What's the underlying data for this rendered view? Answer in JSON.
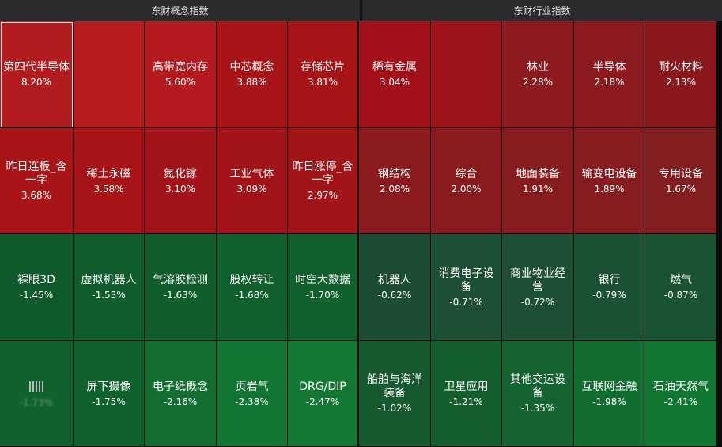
{
  "headers": {
    "left": "东财概念指数",
    "right": "东财行业指数"
  },
  "tiles": [
    {
      "name": "第四代半导体",
      "pct": "8.20%",
      "color": "#b31c1f"
    },
    {
      "name": "",
      "pct": "",
      "color": "#b71c1f"
    },
    {
      "name": "高带宽内存",
      "pct": "5.60%",
      "color": "#b51b1e"
    },
    {
      "name": "中芯概念",
      "pct": "3.88%",
      "color": "#a81418"
    },
    {
      "name": "存储芯片",
      "pct": "3.81%",
      "color": "#a61418"
    },
    {
      "name": "稀有金属",
      "pct": "3.04%",
      "color": "#a3101a"
    },
    {
      "name": "",
      "pct": "",
      "color": "#9e131a"
    },
    {
      "name": "林业",
      "pct": "2.28%",
      "color": "#8c1a1e"
    },
    {
      "name": "半导体",
      "pct": "2.18%",
      "color": "#8b191d"
    },
    {
      "name": "耐火材料",
      "pct": "2.13%",
      "color": "#8a181c"
    },
    {
      "name": "昨日连板_含一字",
      "pct": "3.68%",
      "color": "#a81418"
    },
    {
      "name": "稀土永磁",
      "pct": "3.58%",
      "color": "#a71418"
    },
    {
      "name": "氮化镓",
      "pct": "3.10%",
      "color": "#a3131a"
    },
    {
      "name": "工业气体",
      "pct": "3.09%",
      "color": "#a3131a"
    },
    {
      "name": "昨日涨停_含一字",
      "pct": "2.97%",
      "color": "#a11519"
    },
    {
      "name": "钢结构",
      "pct": "2.08%",
      "color": "#8a1a1e"
    },
    {
      "name": "综合",
      "pct": "2.00%",
      "color": "#891b1e"
    },
    {
      "name": "地面装备",
      "pct": "1.91%",
      "color": "#871c1f"
    },
    {
      "name": "输变电设备",
      "pct": "1.89%",
      "color": "#861c1f"
    },
    {
      "name": "专用设备",
      "pct": "1.67%",
      "color": "#821d20"
    },
    {
      "name": "裸眼3D",
      "pct": "-1.45%",
      "color": "#0f5a2b"
    },
    {
      "name": "虚拟机器人",
      "pct": "-1.53%",
      "color": "#0f5d2c"
    },
    {
      "name": "气溶胶检测",
      "pct": "-1.63%",
      "color": "#0f5e2c"
    },
    {
      "name": "股权转让",
      "pct": "-1.68%",
      "color": "#10602d"
    },
    {
      "name": "时空大数据",
      "pct": "-1.70%",
      "color": "#10612d"
    },
    {
      "name": "机器人",
      "pct": "-0.62%",
      "color": "#1c4d33"
    },
    {
      "name": "消费电子设备",
      "pct": "-0.71%",
      "color": "#1c4f33"
    },
    {
      "name": "商业物业经营",
      "pct": "-0.72%",
      "color": "#1c4f33"
    },
    {
      "name": "银行",
      "pct": "-0.79%",
      "color": "#1b5133"
    },
    {
      "name": "燃气",
      "pct": "-0.87%",
      "color": "#1a5332"
    },
    {
      "name": "",
      "pct": "-1.73%",
      "color": "#10612d",
      "blurred": true
    },
    {
      "name": "屏下摄像",
      "pct": "-1.75%",
      "color": "#10622d"
    },
    {
      "name": "电子纸概念",
      "pct": "-2.16%",
      "color": "#126f31"
    },
    {
      "name": "页岩气",
      "pct": "-2.38%",
      "color": "#137533"
    },
    {
      "name": "DRG/DIP",
      "pct": "-2.47%",
      "color": "#147834"
    },
    {
      "name": "船舶与海洋装备",
      "pct": "-1.02%",
      "color": "#175a2f"
    },
    {
      "name": "卫星应用",
      "pct": "-1.21%",
      "color": "#155f2f"
    },
    {
      "name": "其他交运设备",
      "pct": "-1.35%",
      "color": "#146330"
    },
    {
      "name": "互联网金融",
      "pct": "-1.98%",
      "color": "#126d31"
    },
    {
      "name": "石油天然气",
      "pct": "-2.41%",
      "color": "#137734"
    }
  ]
}
